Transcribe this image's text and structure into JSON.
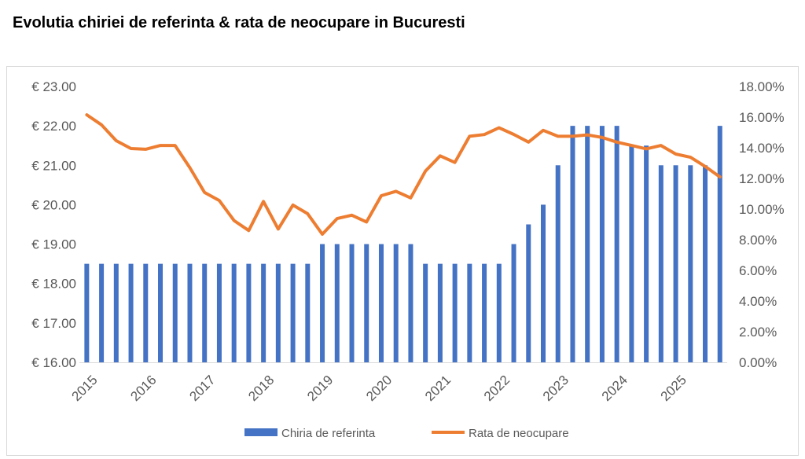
{
  "chart_data": {
    "type": "bar+line",
    "title": "Evolutia chiriei de referinta & rata de neocupare in Bucuresti",
    "x_tick_labels": [
      "2015",
      "2016",
      "2017",
      "2018",
      "2019",
      "2020",
      "2021",
      "2022",
      "2023",
      "2024",
      "2025"
    ],
    "periods": "quarterly, 2015 Q1 - 2025 Q4",
    "left_axis": {
      "min": 16,
      "max": 23,
      "step": 1,
      "tick_labels": [
        "€ 16.00",
        "€ 17.00",
        "€ 18.00",
        "€ 19.00",
        "€ 20.00",
        "€ 21.00",
        "€ 22.00",
        "€ 23.00"
      ]
    },
    "right_axis": {
      "min": 0,
      "max": 18,
      "step": 2,
      "tick_labels": [
        "0.00%",
        "2.00%",
        "4.00%",
        "6.00%",
        "8.00%",
        "10.00%",
        "12.00%",
        "14.00%",
        "16.00%",
        "18.00%"
      ]
    },
    "grid": false,
    "legend_position": "bottom",
    "series": [
      {
        "name": "Chiria de referinta",
        "type": "bar",
        "axis": "left",
        "color": "#4472C4",
        "values": [
          18.5,
          18.5,
          18.5,
          18.5,
          18.5,
          18.5,
          18.5,
          18.5,
          18.5,
          18.5,
          18.5,
          18.5,
          18.5,
          18.5,
          18.5,
          18.5,
          19,
          19,
          19,
          19,
          19,
          19,
          19,
          18.5,
          18.5,
          18.5,
          18.5,
          18.5,
          18.5,
          19,
          19.5,
          20,
          21,
          22,
          22,
          22,
          22,
          21.5,
          21.5,
          21,
          21,
          21,
          21,
          22
        ]
      },
      {
        "name": "Rata de neocupare",
        "type": "line",
        "axis": "right",
        "color": "#ED7D31",
        "values": [
          16.15,
          15.5,
          14.46,
          13.95,
          13.9,
          14.15,
          14.15,
          12.7,
          11.08,
          10.56,
          9.25,
          8.6,
          10.5,
          8.7,
          10.26,
          9.7,
          8.36,
          9.38,
          9.6,
          9.16,
          10.87,
          11.16,
          10.73,
          12.48,
          13.47,
          13.04,
          14.75,
          14.86,
          15.3,
          14.87,
          14.37,
          15.14,
          14.75,
          14.75,
          14.84,
          14.67,
          14.37,
          14.15,
          13.93,
          14.15,
          13.59,
          13.38,
          12.78,
          12.1
        ]
      }
    ]
  }
}
